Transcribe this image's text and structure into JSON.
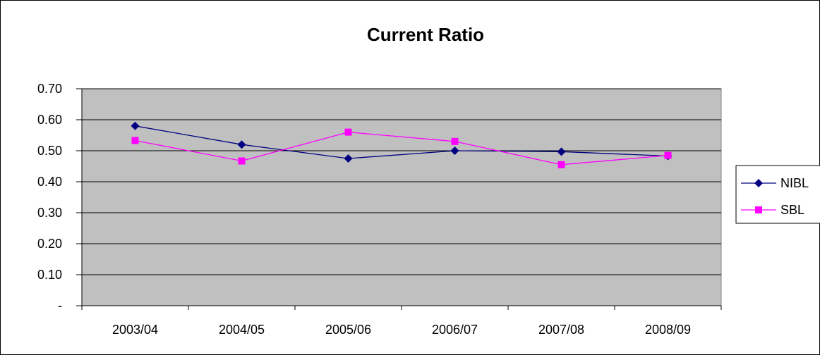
{
  "chart_data": {
    "type": "line",
    "title": "Current Ratio",
    "xlabel": "",
    "ylabel": "",
    "categories": [
      "2003/04",
      "2004/05",
      "2005/06",
      "2006/07",
      "2007/08",
      "2008/09"
    ],
    "ylim": [
      0,
      0.7
    ],
    "yticks": [
      {
        "value": 0,
        "label": "-"
      },
      {
        "value": 0.1,
        "label": "0.10"
      },
      {
        "value": 0.2,
        "label": "0.20"
      },
      {
        "value": 0.3,
        "label": "0.30"
      },
      {
        "value": 0.4,
        "label": "0.40"
      },
      {
        "value": 0.5,
        "label": "0.50"
      },
      {
        "value": 0.6,
        "label": "0.60"
      },
      {
        "value": 0.7,
        "label": "0.70"
      }
    ],
    "grid": true,
    "plot_background": "#c0c0c0",
    "legend_position": "right",
    "series": [
      {
        "name": "NIBL",
        "color": "#000080",
        "marker": "diamond",
        "values": [
          0.58,
          0.52,
          0.475,
          0.5,
          0.497,
          0.483
        ]
      },
      {
        "name": "SBL",
        "color": "#ff00ff",
        "marker": "square",
        "values": [
          0.533,
          0.467,
          0.56,
          0.53,
          0.455,
          0.485
        ]
      }
    ]
  }
}
